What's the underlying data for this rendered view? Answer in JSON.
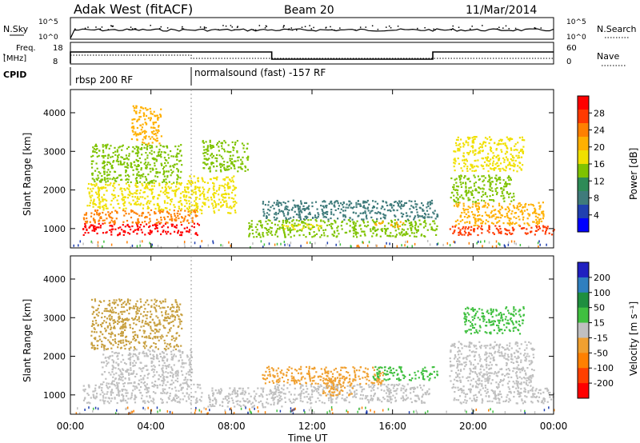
{
  "header": {
    "station": "Adak West (fitACF)",
    "beam": "Beam 20",
    "date": "11/Mar/2014"
  },
  "top_panels": {
    "nsky_label": "N.Sky",
    "nsky_ticks": [
      "10^5",
      "10^0"
    ],
    "nsearch_label": "N.Search",
    "nsearch_ticks": [
      "10^5",
      "10^0"
    ],
    "freq_label_1": "Freq.",
    "freq_label_2": "[MHz]",
    "freq_ticks": [
      "18",
      "8"
    ],
    "nave_label": "Nave",
    "nave_ticks": [
      "60",
      "0"
    ],
    "cpid_label": "CPID",
    "cpid_segments": [
      {
        "label": "rbsp 200 RF",
        "start_hour": 0,
        "end_hour": 6
      },
      {
        "label": "normalsound (fast) -157 RF",
        "start_hour": 6,
        "end_hour": 24
      }
    ],
    "freq_steps": [
      {
        "start_hour": 0,
        "end_hour": 10,
        "level": "high"
      },
      {
        "start_hour": 10,
        "end_hour": 18,
        "level": "low"
      },
      {
        "start_hour": 18,
        "end_hour": 24,
        "level": "high"
      }
    ]
  },
  "chart_data": [
    {
      "type": "heatmap",
      "quantity": "Power",
      "ylabel": "Slant Range [km]",
      "y_ticks": [
        "1000",
        "2000",
        "3000",
        "4000"
      ],
      "ylim": [
        500,
        4600
      ],
      "xlim": [
        0,
        24
      ],
      "colorbar_label": "Power [dB]",
      "colorbar_ticks": [
        "28",
        "24",
        "20",
        "16",
        "12",
        "8",
        "4"
      ],
      "colorbar_colors": [
        "#ff0000",
        "#ff3a00",
        "#ff8000",
        "#ffb000",
        "#f0e000",
        "#7fc300",
        "#2e8b57",
        "#3f7b7b",
        "#2040b0",
        "#0000ff"
      ],
      "regions": [
        {
          "x0": 0.6,
          "x1": 6.4,
          "y0": 850,
          "y1": 1150,
          "level": 0
        },
        {
          "x0": 0.6,
          "x1": 6.3,
          "y0": 1150,
          "y1": 1500,
          "level": 2
        },
        {
          "x0": 0.8,
          "x1": 5.8,
          "y0": 1500,
          "y1": 2200,
          "level": 4
        },
        {
          "x0": 1.0,
          "x1": 5.5,
          "y0": 2200,
          "y1": 3200,
          "level": 5
        },
        {
          "x0": 3.0,
          "x1": 4.5,
          "y0": 3200,
          "y1": 4200,
          "level": 3
        },
        {
          "x0": 5.8,
          "x1": 8.2,
          "y0": 1400,
          "y1": 2400,
          "level": 4
        },
        {
          "x0": 6.5,
          "x1": 8.8,
          "y0": 2500,
          "y1": 3300,
          "level": 5
        },
        {
          "x0": 8.8,
          "x1": 18.2,
          "y0": 800,
          "y1": 1250,
          "level": 5
        },
        {
          "x0": 9.5,
          "x1": 18.2,
          "y0": 1250,
          "y1": 1750,
          "level": 7
        },
        {
          "x0": 10.5,
          "x1": 12.5,
          "y0": 1000,
          "y1": 1150,
          "level": 4
        },
        {
          "x0": 15.0,
          "x1": 16.5,
          "y0": 1050,
          "y1": 1200,
          "level": 3
        },
        {
          "x0": 18.8,
          "x1": 24.0,
          "y0": 850,
          "y1": 1100,
          "level": 1
        },
        {
          "x0": 19.0,
          "x1": 23.5,
          "y0": 1100,
          "y1": 1700,
          "level": 3
        },
        {
          "x0": 18.8,
          "x1": 22.0,
          "y0": 1700,
          "y1": 2400,
          "level": 5
        },
        {
          "x0": 19.0,
          "x1": 22.5,
          "y0": 2500,
          "y1": 3400,
          "level": 4
        }
      ]
    },
    {
      "type": "heatmap",
      "quantity": "Velocity",
      "ylabel": "Slant Range [km]",
      "xlabel": "Time UT",
      "x_ticks": [
        "00:00",
        "04:00",
        "08:00",
        "12:00",
        "16:00",
        "20:00",
        "00:00"
      ],
      "y_ticks": [
        "1000",
        "2000",
        "3000",
        "4000"
      ],
      "ylim": [
        500,
        4600
      ],
      "xlim": [
        0,
        24
      ],
      "colorbar_label": "Velocity [m s⁻¹]",
      "colorbar_ticks": [
        "200",
        "100",
        "50",
        "15",
        "-15",
        "-50",
        "-100",
        "-200"
      ],
      "colorbar_colors": [
        "#2020c0",
        "#2f7fbf",
        "#1f8f3f",
        "#40c040",
        "#c0c0c0",
        "#f0a030",
        "#ff8000",
        "#ff4000",
        "#ff0000"
      ],
      "regions": [
        {
          "x0": 0.6,
          "x1": 6.5,
          "y0": 800,
          "y1": 1300,
          "color": "#c0c0c0"
        },
        {
          "x0": 1.5,
          "x1": 6.0,
          "y0": 1300,
          "y1": 2200,
          "color": "#c0c0c0"
        },
        {
          "x0": 1.0,
          "x1": 5.5,
          "y0": 2200,
          "y1": 3500,
          "color": "#c8a040"
        },
        {
          "x0": 6.8,
          "x1": 10.5,
          "y0": 700,
          "y1": 1200,
          "color": "#c0c0c0"
        },
        {
          "x0": 10.0,
          "x1": 17.8,
          "y0": 800,
          "y1": 1300,
          "color": "#c0c0c0"
        },
        {
          "x0": 9.5,
          "x1": 15.5,
          "y0": 1300,
          "y1": 1750,
          "color": "#f0a030"
        },
        {
          "x0": 15.0,
          "x1": 18.2,
          "y0": 1400,
          "y1": 1750,
          "color": "#40c040"
        },
        {
          "x0": 12.5,
          "x1": 14.0,
          "y0": 1000,
          "y1": 1500,
          "color": "#f0a030"
        },
        {
          "x0": 19.0,
          "x1": 24.0,
          "y0": 800,
          "y1": 1200,
          "color": "#c0c0c0"
        },
        {
          "x0": 18.8,
          "x1": 23.0,
          "y0": 1200,
          "y1": 2400,
          "color": "#c0c0c0"
        },
        {
          "x0": 19.5,
          "x1": 22.5,
          "y0": 2600,
          "y1": 3300,
          "color": "#40c040"
        }
      ]
    }
  ]
}
